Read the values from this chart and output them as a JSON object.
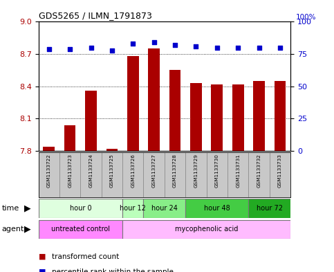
{
  "title": "GDS5265 / ILMN_1791873",
  "samples": [
    "GSM1133722",
    "GSM1133723",
    "GSM1133724",
    "GSM1133725",
    "GSM1133726",
    "GSM1133727",
    "GSM1133728",
    "GSM1133729",
    "GSM1133730",
    "GSM1133731",
    "GSM1133732",
    "GSM1133733"
  ],
  "bar_values": [
    7.84,
    8.04,
    8.36,
    7.82,
    8.68,
    8.75,
    8.55,
    8.43,
    8.42,
    8.42,
    8.45,
    8.45
  ],
  "percentile_values": [
    79,
    79,
    80,
    78,
    83,
    84,
    82,
    81,
    80,
    80,
    80,
    80
  ],
  "ylim_left": [
    7.8,
    9.0
  ],
  "ylim_right": [
    0,
    100
  ],
  "yticks_left": [
    7.8,
    8.1,
    8.4,
    8.7,
    9.0
  ],
  "yticks_right": [
    0,
    25,
    50,
    75,
    100
  ],
  "bar_color": "#AA0000",
  "dot_color": "#0000CC",
  "bar_bottom": 7.8,
  "time_groups": [
    {
      "label": "hour 0",
      "start": 0,
      "end": 3,
      "color": "#DFFFDF"
    },
    {
      "label": "hour 12",
      "start": 4,
      "end": 4,
      "color": "#BBFFBB"
    },
    {
      "label": "hour 24",
      "start": 5,
      "end": 6,
      "color": "#88EE88"
    },
    {
      "label": "hour 48",
      "start": 7,
      "end": 9,
      "color": "#44CC44"
    },
    {
      "label": "hour 72",
      "start": 10,
      "end": 11,
      "color": "#22AA22"
    }
  ],
  "agent_groups": [
    {
      "label": "untreated control",
      "start": 0,
      "end": 3,
      "color": "#FF88FF"
    },
    {
      "label": "mycophenolic acid",
      "start": 4,
      "end": 11,
      "color": "#FFBBFF"
    }
  ],
  "plot_bg": "#FFFFFF",
  "sample_bg": "#C8C8C8",
  "figsize": [
    4.83,
    3.93
  ],
  "dpi": 100
}
